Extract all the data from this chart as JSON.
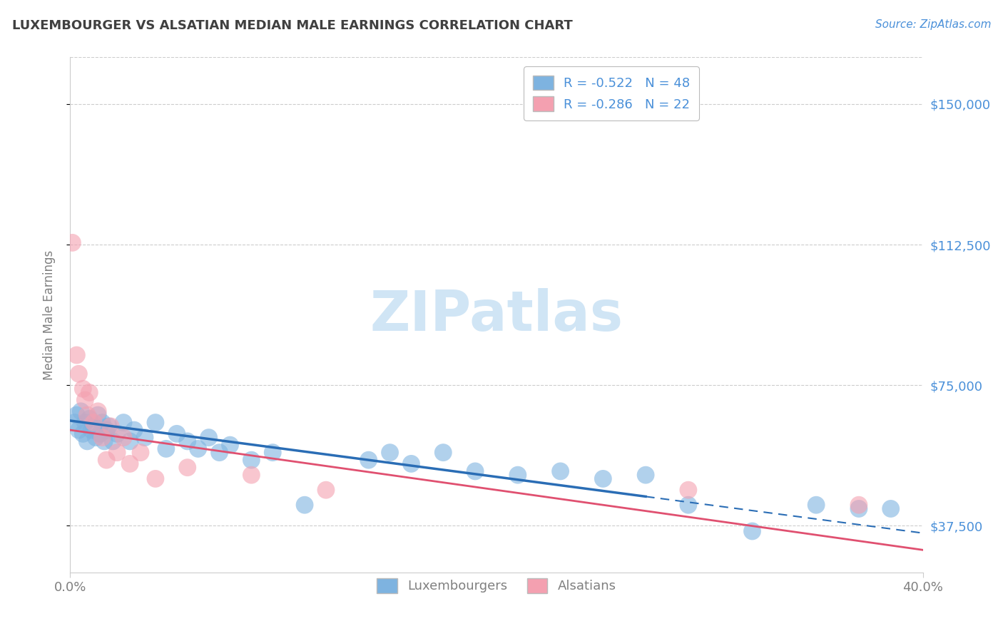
{
  "title": "LUXEMBOURGER VS ALSATIAN MEDIAN MALE EARNINGS CORRELATION CHART",
  "source": "Source: ZipAtlas.com",
  "ylabel": "Median Male Earnings",
  "xlim": [
    0.0,
    0.4
  ],
  "ylim": [
    25000,
    162500
  ],
  "yticks": [
    37500,
    75000,
    112500,
    150000
  ],
  "ytick_labels": [
    "$37,500",
    "$75,000",
    "$112,500",
    "$150,000"
  ],
  "xticks": [
    0.0,
    0.4
  ],
  "xtick_labels": [
    "0.0%",
    "40.0%"
  ],
  "legend_labels": [
    "R = -0.522   N = 48",
    "R = -0.286   N = 22"
  ],
  "legend_bottom_labels": [
    "Luxembourgers",
    "Alsatians"
  ],
  "blue_color": "#7EB3E0",
  "pink_color": "#F4A0B0",
  "blue_line_color": "#2A6DB5",
  "pink_line_color": "#E05070",
  "title_color": "#404040",
  "axis_label_color": "#808080",
  "right_tick_color": "#4A90D9",
  "watermark": "ZIPatlas",
  "lux_points": [
    [
      0.002,
      65000
    ],
    [
      0.003,
      67000
    ],
    [
      0.004,
      63000
    ],
    [
      0.005,
      68000
    ],
    [
      0.006,
      62000
    ],
    [
      0.007,
      65000
    ],
    [
      0.008,
      60000
    ],
    [
      0.009,
      66000
    ],
    [
      0.01,
      63000
    ],
    [
      0.011,
      64000
    ],
    [
      0.012,
      61000
    ],
    [
      0.013,
      67000
    ],
    [
      0.014,
      62000
    ],
    [
      0.015,
      65000
    ],
    [
      0.016,
      60000
    ],
    [
      0.017,
      63000
    ],
    [
      0.018,
      64000
    ],
    [
      0.02,
      60000
    ],
    [
      0.022,
      62000
    ],
    [
      0.025,
      65000
    ],
    [
      0.028,
      60000
    ],
    [
      0.03,
      63000
    ],
    [
      0.035,
      61000
    ],
    [
      0.04,
      65000
    ],
    [
      0.045,
      58000
    ],
    [
      0.05,
      62000
    ],
    [
      0.055,
      60000
    ],
    [
      0.06,
      58000
    ],
    [
      0.065,
      61000
    ],
    [
      0.07,
      57000
    ],
    [
      0.075,
      59000
    ],
    [
      0.085,
      55000
    ],
    [
      0.095,
      57000
    ],
    [
      0.11,
      43000
    ],
    [
      0.14,
      55000
    ],
    [
      0.15,
      57000
    ],
    [
      0.16,
      54000
    ],
    [
      0.175,
      57000
    ],
    [
      0.19,
      52000
    ],
    [
      0.27,
      51000
    ],
    [
      0.29,
      43000
    ],
    [
      0.32,
      36000
    ],
    [
      0.35,
      43000
    ],
    [
      0.37,
      42000
    ],
    [
      0.385,
      42000
    ],
    [
      0.25,
      50000
    ],
    [
      0.23,
      52000
    ],
    [
      0.21,
      51000
    ]
  ],
  "als_points": [
    [
      0.001,
      113000
    ],
    [
      0.003,
      83000
    ],
    [
      0.004,
      78000
    ],
    [
      0.006,
      74000
    ],
    [
      0.007,
      71000
    ],
    [
      0.008,
      67000
    ],
    [
      0.009,
      73000
    ],
    [
      0.011,
      65000
    ],
    [
      0.013,
      68000
    ],
    [
      0.015,
      61000
    ],
    [
      0.017,
      55000
    ],
    [
      0.019,
      64000
    ],
    [
      0.022,
      57000
    ],
    [
      0.025,
      61000
    ],
    [
      0.028,
      54000
    ],
    [
      0.033,
      57000
    ],
    [
      0.04,
      50000
    ],
    [
      0.055,
      53000
    ],
    [
      0.085,
      51000
    ],
    [
      0.12,
      47000
    ],
    [
      0.29,
      47000
    ],
    [
      0.37,
      43000
    ]
  ],
  "background_color": "#FFFFFF",
  "grid_color": "#CCCCCC",
  "watermark_color": "#D0E5F5"
}
